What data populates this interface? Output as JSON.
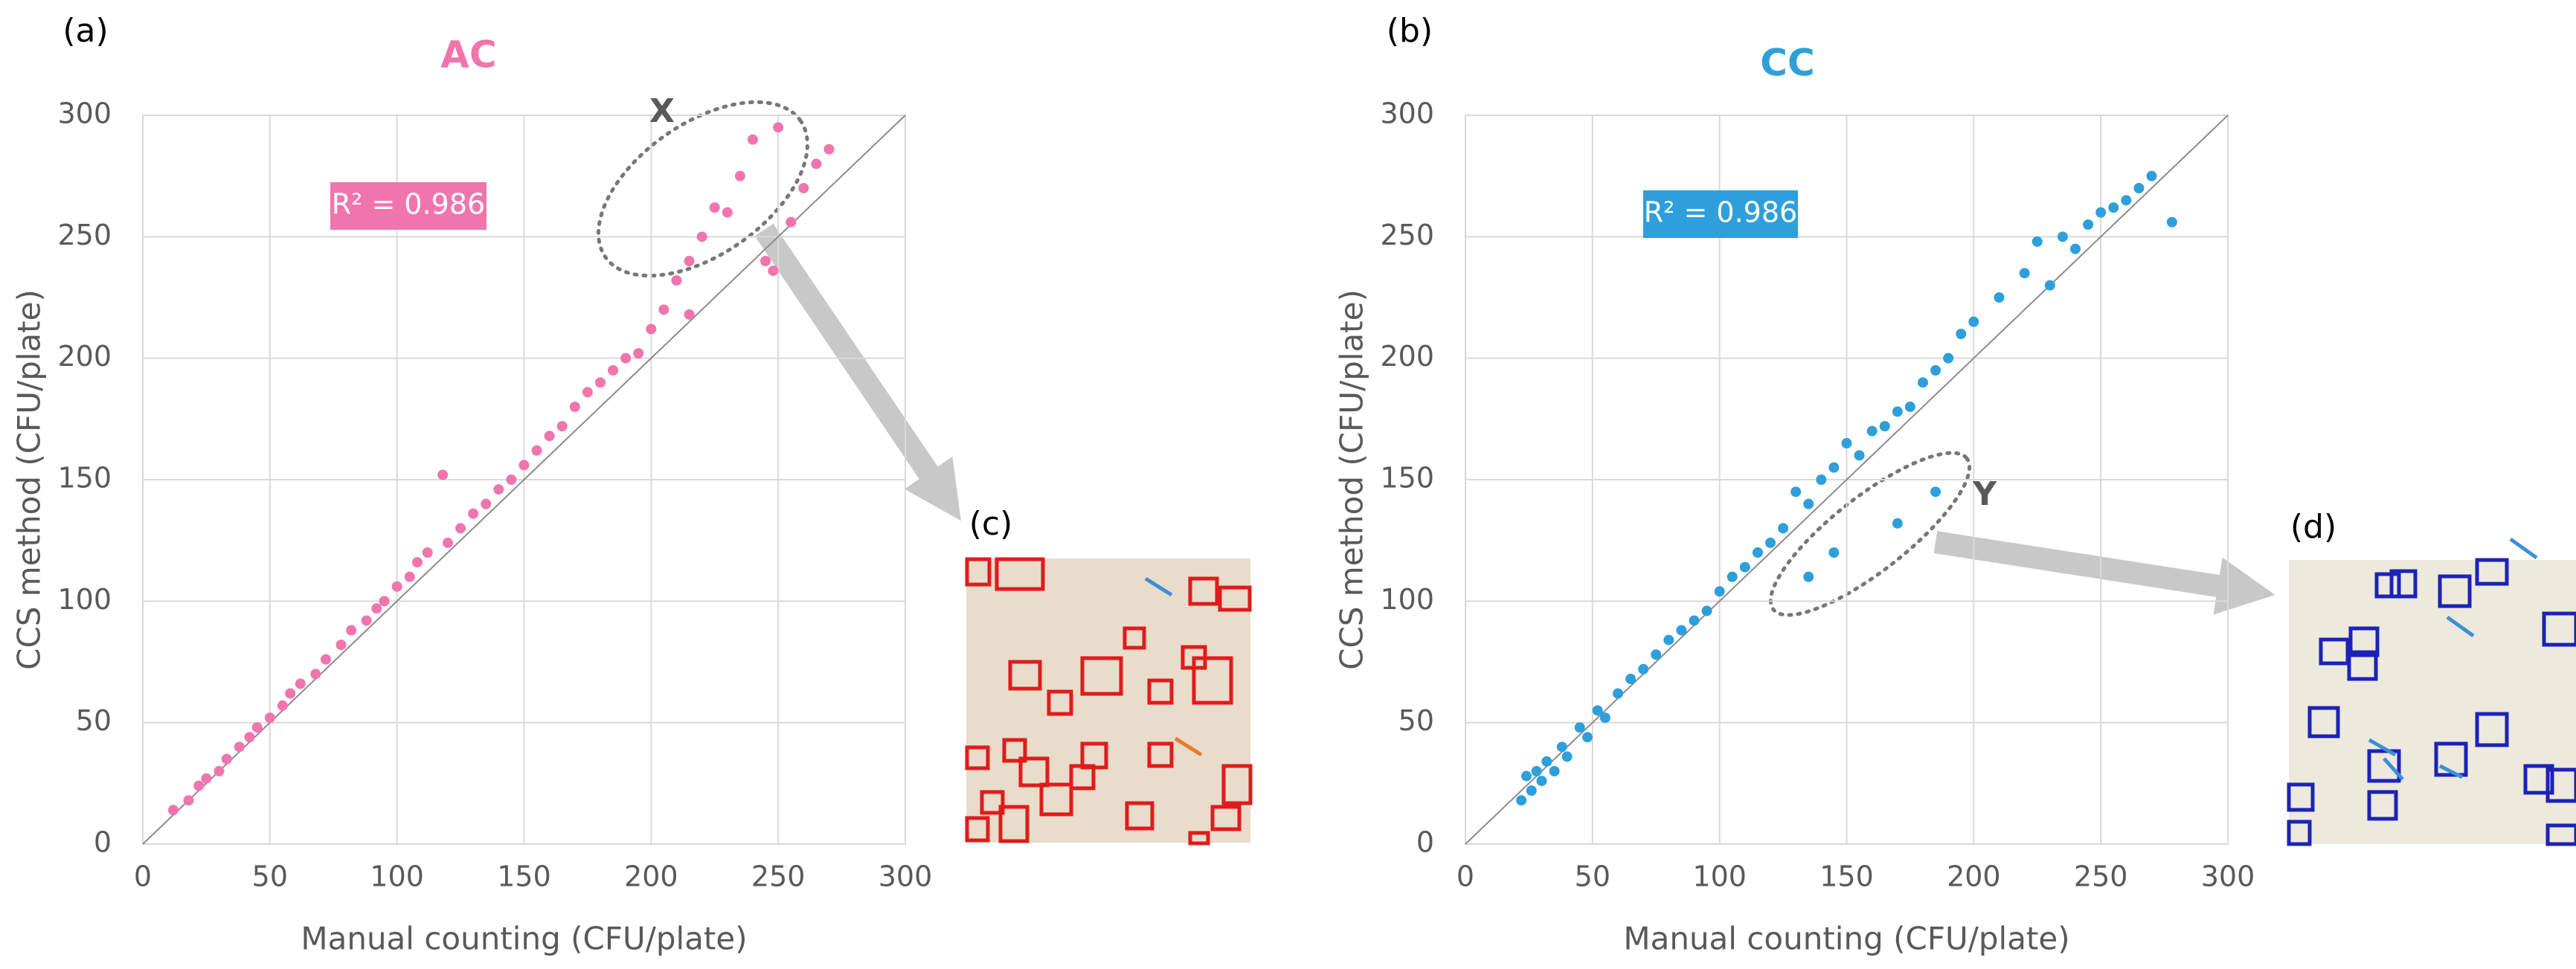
{
  "chart_data": [
    {
      "type": "scatter",
      "panel": "(a)",
      "title": "AC",
      "x_label": "Manual counting (CFU/plate)",
      "y_label": "CCS method (CFU/plate)",
      "annotation": "R² = 0.986",
      "ellipse_label": "X",
      "inset_label": "(c)",
      "color": "#f075ad",
      "x": [
        12,
        18,
        22,
        25,
        30,
        33,
        38,
        42,
        45,
        50,
        55,
        58,
        62,
        68,
        72,
        78,
        82,
        88,
        92,
        95,
        100,
        105,
        108,
        112,
        118,
        120,
        125,
        130,
        135,
        140,
        145,
        150,
        155,
        160,
        165,
        170,
        175,
        180,
        185,
        190,
        195,
        200,
        205,
        210,
        215,
        220,
        225,
        230,
        235,
        240,
        245,
        250,
        255,
        260,
        265,
        270,
        248,
        215
      ],
      "y": [
        14,
        18,
        24,
        27,
        30,
        35,
        40,
        44,
        48,
        52,
        57,
        62,
        66,
        70,
        76,
        82,
        88,
        92,
        97,
        100,
        106,
        110,
        116,
        120,
        152,
        124,
        130,
        136,
        140,
        146,
        150,
        156,
        162,
        168,
        172,
        180,
        186,
        190,
        195,
        200,
        202,
        212,
        220,
        232,
        240,
        250,
        262,
        260,
        275,
        290,
        240,
        295,
        256,
        270,
        280,
        286,
        236,
        218
      ],
      "xlim": [
        0,
        300
      ],
      "ylim": [
        0,
        300
      ],
      "xticks": [
        0,
        50,
        100,
        150,
        200,
        250,
        300
      ],
      "yticks": [
        0,
        50,
        100,
        150,
        200,
        250,
        300
      ],
      "grid": true
    },
    {
      "type": "scatter",
      "panel": "(b)",
      "title": "CC",
      "x_label": "Manual counting (CFU/plate)",
      "y_label": "CCS method (CFU/plate)",
      "annotation": "R² = 0.986",
      "ellipse_label": "Y",
      "inset_label": "(d)",
      "color": "#2e9fdb",
      "x": [
        22,
        24,
        26,
        28,
        30,
        32,
        35,
        38,
        40,
        45,
        48,
        52,
        55,
        60,
        65,
        70,
        75,
        80,
        85,
        90,
        95,
        100,
        105,
        110,
        115,
        120,
        125,
        130,
        135,
        140,
        145,
        150,
        155,
        160,
        165,
        170,
        175,
        180,
        185,
        190,
        195,
        200,
        210,
        220,
        225,
        230,
        235,
        240,
        245,
        250,
        255,
        260,
        265,
        270,
        278,
        170,
        145,
        185,
        135
      ],
      "y": [
        18,
        28,
        22,
        30,
        26,
        34,
        30,
        40,
        36,
        48,
        44,
        55,
        52,
        62,
        68,
        72,
        78,
        84,
        88,
        92,
        96,
        104,
        110,
        114,
        120,
        124,
        130,
        145,
        140,
        150,
        155,
        165,
        160,
        170,
        172,
        178,
        180,
        190,
        195,
        200,
        210,
        215,
        225,
        235,
        248,
        230,
        250,
        245,
        255,
        260,
        262,
        265,
        270,
        275,
        256,
        132,
        120,
        145,
        110
      ],
      "xlim": [
        0,
        300
      ],
      "ylim": [
        0,
        300
      ],
      "xticks": [
        0,
        50,
        100,
        150,
        200,
        250,
        300
      ],
      "yticks": [
        0,
        50,
        100,
        150,
        200,
        250,
        300
      ],
      "grid": true
    }
  ]
}
